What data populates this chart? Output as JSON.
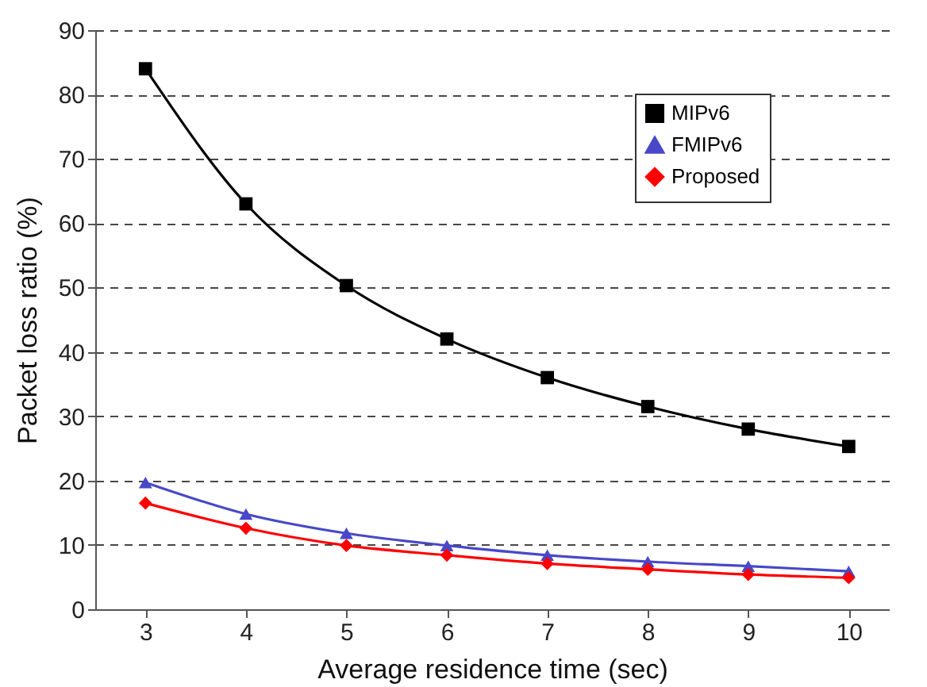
{
  "chart_data": {
    "type": "line",
    "xlabel": "Average residence time (sec)",
    "ylabel": "Packet loss ratio (%)",
    "x": [
      3,
      4,
      5,
      6,
      7,
      8,
      9,
      10
    ],
    "series": [
      {
        "name": "MIPv6",
        "color": "#000000",
        "marker": "square",
        "values": [
          84,
          63,
          50.3,
          42,
          36,
          31.5,
          28,
          25.3
        ]
      },
      {
        "name": "FMIPv6",
        "color": "#4848c8",
        "marker": "triangle",
        "values": [
          19.7,
          14.8,
          11.8,
          9.9,
          8.4,
          7.4,
          6.7,
          5.9
        ]
      },
      {
        "name": "Proposed",
        "color": "#ff0000",
        "marker": "diamond",
        "values": [
          16.5,
          12.6,
          9.9,
          8.4,
          7.1,
          6.2,
          5.4,
          4.9
        ]
      }
    ],
    "xlim": [
      2.5,
      10.4
    ],
    "xticks": [
      3,
      4,
      5,
      6,
      7,
      8,
      9,
      10
    ],
    "ylim": [
      0,
      90
    ],
    "yticks": [
      0,
      10,
      20,
      30,
      40,
      50,
      60,
      70,
      80,
      90
    ],
    "grid": "y",
    "legend": "top right",
    "line_style": "solid"
  }
}
